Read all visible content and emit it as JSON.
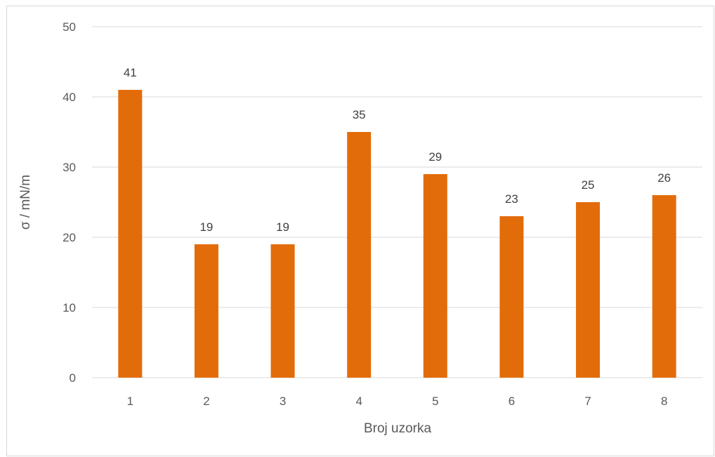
{
  "chart_data": {
    "type": "bar",
    "categories": [
      "1",
      "2",
      "3",
      "4",
      "5",
      "6",
      "7",
      "8"
    ],
    "values": [
      41,
      19,
      19,
      35,
      29,
      23,
      25,
      26
    ],
    "data_labels": [
      "41",
      "19",
      "19",
      "35",
      "29",
      "23",
      "25",
      "26"
    ],
    "title": "",
    "xlabel": "Broj uzorka",
    "ylabel": "σ / mN/m",
    "ylim": [
      0,
      50
    ],
    "yticks": [
      "0",
      "10",
      "20",
      "30",
      "40",
      "50"
    ],
    "grid": true,
    "legend": "none",
    "bar_color": "#e36c0a",
    "grid_color": "#d9d9d9"
  }
}
